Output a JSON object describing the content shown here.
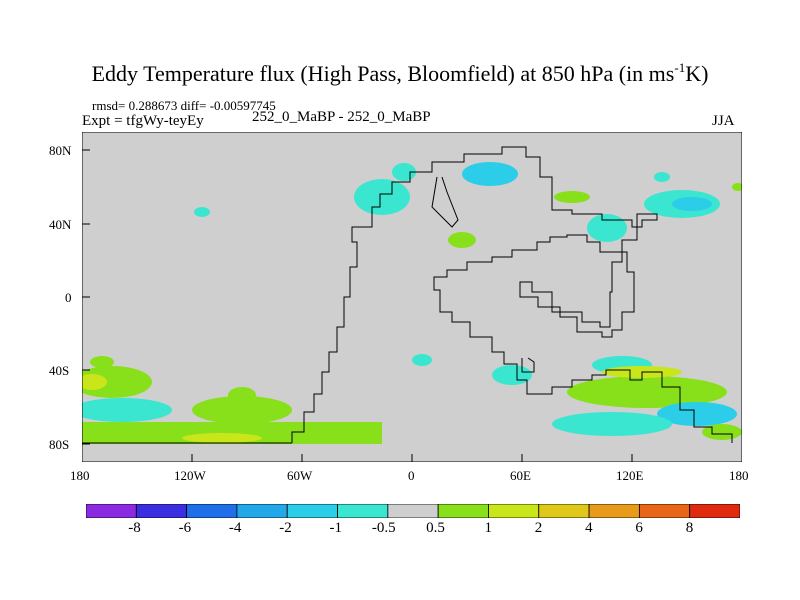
{
  "title": {
    "main": "Eddy Temperature flux (High Pass, Bloomfield) at 850 hPa (in ms",
    "sup": "-1",
    "end": "K)"
  },
  "stats": "rmsd= 0.288673 diff= -0.00597745",
  "expt": "Expt = tfgWy-teyEy",
  "center_label": "252_0_MaBP - 252_0_MaBP",
  "season": "JJA",
  "axes": {
    "x_ticks": [
      "180",
      "120W",
      "60W",
      "0",
      "60E",
      "120E",
      "180"
    ],
    "y_ticks": [
      "80N",
      "40N",
      "0",
      "40S",
      "80S"
    ]
  },
  "colorbar": {
    "labels": [
      "-8",
      "-6",
      "-4",
      "-2",
      "-1",
      "-0.5",
      "0.5",
      "1",
      "2",
      "4",
      "6",
      "8"
    ],
    "colors": [
      "#8a2be2",
      "#3b2de0",
      "#1f6fe8",
      "#22a7e8",
      "#2ccde8",
      "#3ae6d0",
      "#cfcfcf",
      "#88e01a",
      "#c8e61a",
      "#e0c81a",
      "#e89a1a",
      "#e8661a",
      "#e02a10"
    ]
  },
  "colors": {
    "land_fill": "#cfcfcf",
    "coast": "#000000"
  }
}
